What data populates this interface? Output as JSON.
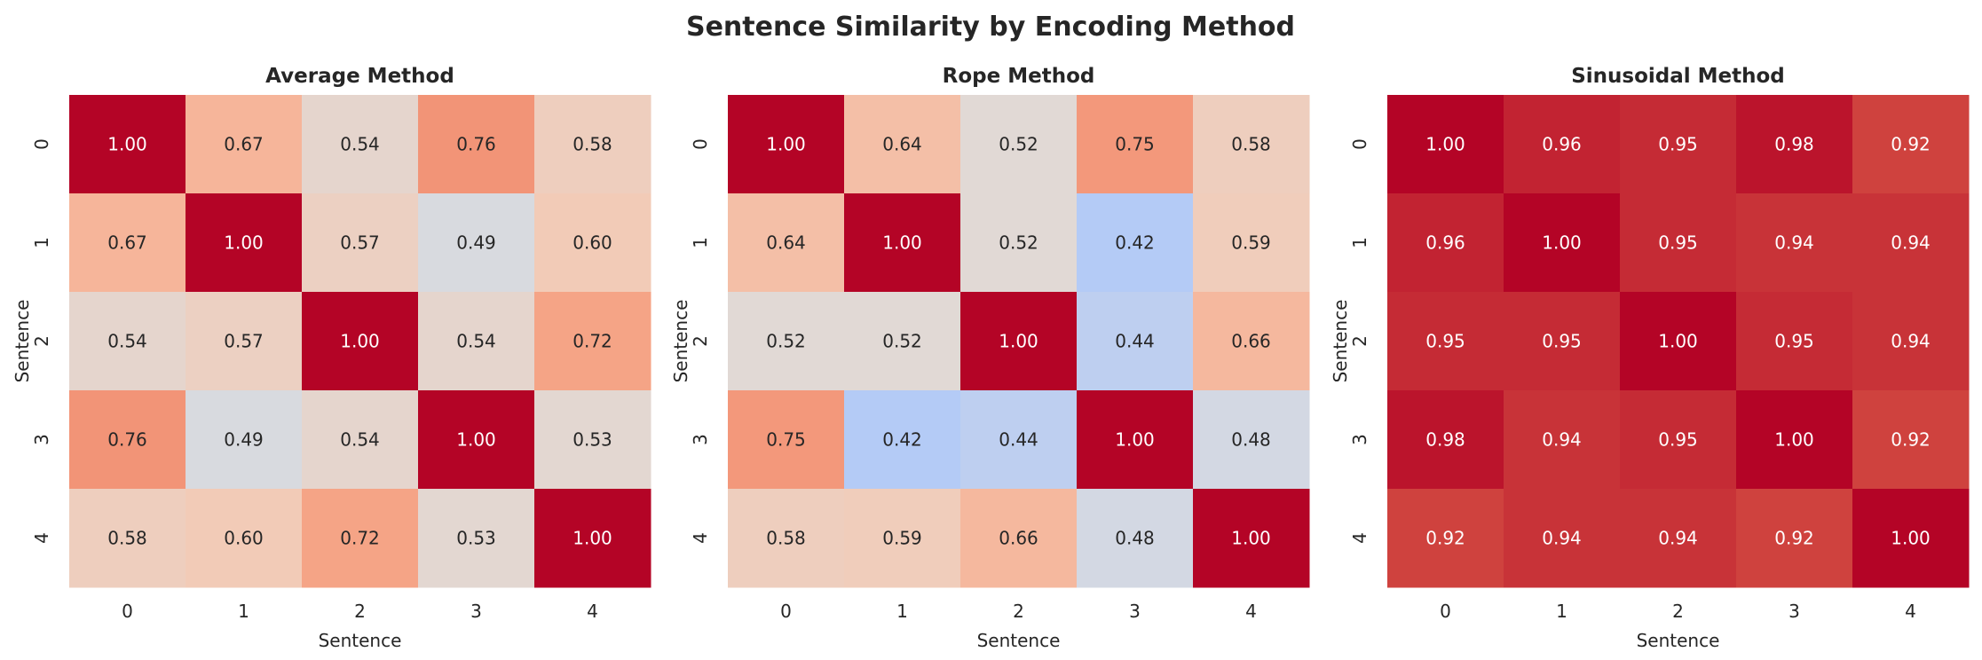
{
  "chart_data": [
    {
      "type": "heatmap",
      "title": "Average Method",
      "xlabel": "Sentence",
      "ylabel": "Sentence",
      "x_ticks": [
        "0",
        "1",
        "2",
        "3",
        "4"
      ],
      "y_ticks": [
        "0",
        "1",
        "2",
        "3",
        "4"
      ],
      "colormap": "coolwarm",
      "vlim": [
        0,
        1
      ],
      "colorbar": false,
      "values": [
        [
          1.0,
          0.67,
          0.54,
          0.76,
          0.58
        ],
        [
          0.67,
          1.0,
          0.57,
          0.49,
          0.6
        ],
        [
          0.54,
          0.57,
          1.0,
          0.54,
          0.72
        ],
        [
          0.76,
          0.49,
          0.54,
          1.0,
          0.53
        ],
        [
          0.58,
          0.6,
          0.72,
          0.53,
          1.0
        ]
      ]
    },
    {
      "type": "heatmap",
      "title": "Rope Method",
      "xlabel": "Sentence",
      "ylabel": "Sentence",
      "x_ticks": [
        "0",
        "1",
        "2",
        "3",
        "4"
      ],
      "y_ticks": [
        "0",
        "1",
        "2",
        "3",
        "4"
      ],
      "colormap": "coolwarm",
      "vlim": [
        0,
        1
      ],
      "colorbar": false,
      "values": [
        [
          1.0,
          0.64,
          0.52,
          0.75,
          0.58
        ],
        [
          0.64,
          1.0,
          0.52,
          0.42,
          0.59
        ],
        [
          0.52,
          0.52,
          1.0,
          0.44,
          0.66
        ],
        [
          0.75,
          0.42,
          0.44,
          1.0,
          0.48
        ],
        [
          0.58,
          0.59,
          0.66,
          0.48,
          1.0
        ]
      ]
    },
    {
      "type": "heatmap",
      "title": "Sinusoidal Method",
      "xlabel": "Sentence",
      "ylabel": "Sentence",
      "x_ticks": [
        "0",
        "1",
        "2",
        "3",
        "4"
      ],
      "y_ticks": [
        "0",
        "1",
        "2",
        "3",
        "4"
      ],
      "colormap": "coolwarm",
      "vlim": [
        0,
        1
      ],
      "colorbar": false,
      "values": [
        [
          1.0,
          0.96,
          0.95,
          0.98,
          0.92
        ],
        [
          0.96,
          1.0,
          0.95,
          0.94,
          0.94
        ],
        [
          0.95,
          0.95,
          1.0,
          0.95,
          0.94
        ],
        [
          0.98,
          0.94,
          0.95,
          1.0,
          0.92
        ],
        [
          0.92,
          0.94,
          0.94,
          0.92,
          1.0
        ]
      ]
    }
  ],
  "figure": {
    "suptitle": "Sentence Similarity by Encoding Method"
  }
}
